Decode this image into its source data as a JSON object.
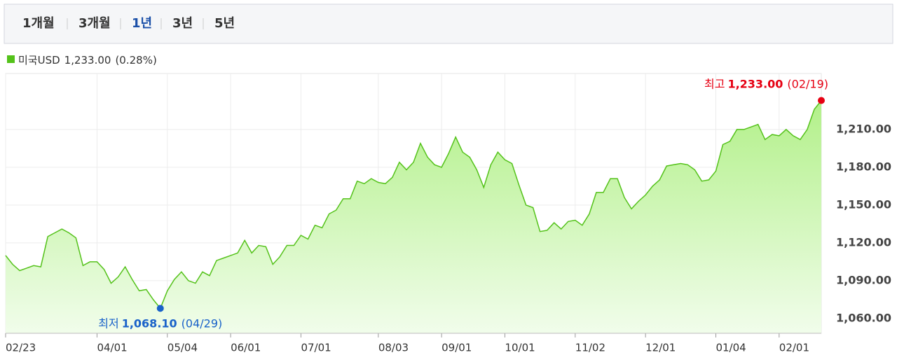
{
  "tabs": [
    "1개월",
    "3개월",
    "1년",
    "3년",
    "5년"
  ],
  "selected_tab": 2,
  "chart_data": {
    "type": "line",
    "legend": {
      "current": "1,233.00",
      "change": "(0.28%)"
    },
    "categories": [
      "02/23",
      null,
      null,
      null,
      null,
      null,
      null,
      null,
      null,
      null,
      null,
      null,
      null,
      "04/01",
      null,
      null,
      null,
      null,
      null,
      null,
      null,
      null,
      null,
      "05/04",
      null,
      null,
      null,
      null,
      null,
      null,
      null,
      null,
      "06/01",
      null,
      null,
      null,
      null,
      null,
      null,
      null,
      null,
      null,
      "07/01",
      null,
      null,
      null,
      null,
      null,
      null,
      null,
      null,
      null,
      null,
      "08/03",
      null,
      null,
      null,
      null,
      null,
      null,
      null,
      null,
      "09/01",
      null,
      null,
      null,
      null,
      null,
      null,
      null,
      null,
      "10/01",
      null,
      null,
      null,
      null,
      null,
      null,
      null,
      null,
      null,
      "11/02",
      null,
      null,
      null,
      null,
      null,
      null,
      null,
      null,
      null,
      "12/01",
      null,
      null,
      null,
      null,
      null,
      null,
      null,
      null,
      null,
      "01/04",
      null,
      null,
      null,
      null,
      null,
      null,
      null,
      null,
      "02/01",
      null,
      null,
      null,
      null,
      null,
      null
    ],
    "series": [
      {
        "name": "미국USD",
        "color": "#54c21a",
        "values": [
          1110,
          1103,
          1098,
          1100,
          1102,
          1101,
          1125,
          1128,
          1131,
          1128,
          1124,
          1102,
          1105,
          1105,
          1099,
          1088,
          1093,
          1101,
          1091,
          1082,
          1083,
          1075,
          1068.1,
          1082,
          1091,
          1097,
          1090,
          1088,
          1097,
          1094,
          1106,
          1108,
          1110,
          1112,
          1122,
          1112,
          1118,
          1117,
          1103,
          1109,
          1118,
          1118,
          1126,
          1123,
          1134,
          1132,
          1143,
          1146,
          1155,
          1155,
          1169,
          1167,
          1171,
          1168,
          1167,
          1172,
          1184,
          1178,
          1184,
          1199,
          1188,
          1182,
          1180,
          1191,
          1204,
          1192,
          1188,
          1178,
          1164,
          1182,
          1192,
          1186,
          1183,
          1166,
          1150,
          1148,
          1129,
          1130,
          1136,
          1131,
          1137,
          1138,
          1134,
          1143,
          1160,
          1160,
          1171,
          1171,
          1156,
          1147,
          1153,
          1158,
          1165,
          1170,
          1181,
          1182,
          1183,
          1182,
          1178,
          1169,
          1170,
          1177,
          1198,
          1200.6,
          1210,
          1210,
          1212,
          1214,
          1202,
          1206,
          1205,
          1210,
          1205,
          1202,
          1210,
          1226,
          1233
        ]
      }
    ],
    "ylim": [
      1048.3,
      1254.4
    ],
    "yticks": [
      {
        "value": 1060,
        "label": "1,060.00"
      },
      {
        "value": 1090,
        "label": "1,090.00"
      },
      {
        "value": 1120,
        "label": "1,120.00"
      },
      {
        "value": 1150,
        "label": "1,150.00"
      },
      {
        "value": 1180,
        "label": "1,180.00"
      },
      {
        "value": 1210,
        "label": "1,210.00"
      }
    ],
    "grid": true,
    "annotations": [
      {
        "kind": "최고",
        "value": 1233,
        "label": "1,233.00",
        "date": "(02/19)",
        "color": "#e60012"
      },
      {
        "kind": "최저",
        "value": 1068.1,
        "label": "1,068.10",
        "date": "(04/29)",
        "color": "#1a62c9"
      }
    ]
  }
}
